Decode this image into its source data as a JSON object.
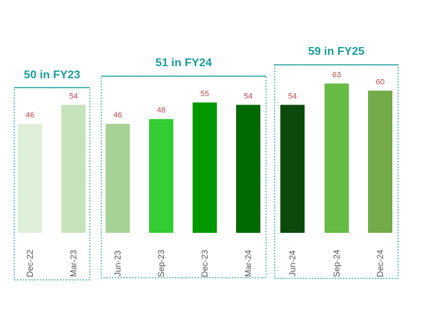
{
  "chart_data": {
    "type": "bar",
    "title": "",
    "xlabel": "",
    "ylabel": "",
    "ylim": [
      0,
      70
    ],
    "grid": false,
    "legend": "none",
    "groups": [
      {
        "title": "50 in FY23",
        "bars": [
          {
            "category": "Dec-22",
            "value": 46,
            "label": "46",
            "color": "#e0efd9"
          },
          {
            "category": "Mar-23",
            "value": 54,
            "label": "54",
            "color": "#c6e2bb"
          }
        ]
      },
      {
        "title": "51 in FY24",
        "bars": [
          {
            "category": "Jun-23",
            "value": 46,
            "label": "46",
            "color": "#a6d395"
          },
          {
            "category": "Sep-23",
            "value": 48,
            "label": "48",
            "color": "#33cc33"
          },
          {
            "category": "Dec-23",
            "value": 55,
            "label": "55",
            "color": "#009a00"
          },
          {
            "category": "Mar-24",
            "value": 54,
            "label": "54",
            "color": "#006a00"
          }
        ]
      },
      {
        "title": "59 in FY25",
        "bars": [
          {
            "category": "Jun-24",
            "value": 54,
            "label": "54",
            "color": "#0b4a0b"
          },
          {
            "category": "Sep-24",
            "value": 63,
            "label": "63",
            "color": "#66bb44"
          },
          {
            "category": "Dec-24",
            "value": 60,
            "label": "60",
            "color": "#72ab48"
          }
        ]
      }
    ],
    "colors": {
      "group_title": "#1a9e99",
      "group_box": "#2aa6a1",
      "value_label": "#b5484b",
      "tick_label": "#555555"
    }
  }
}
